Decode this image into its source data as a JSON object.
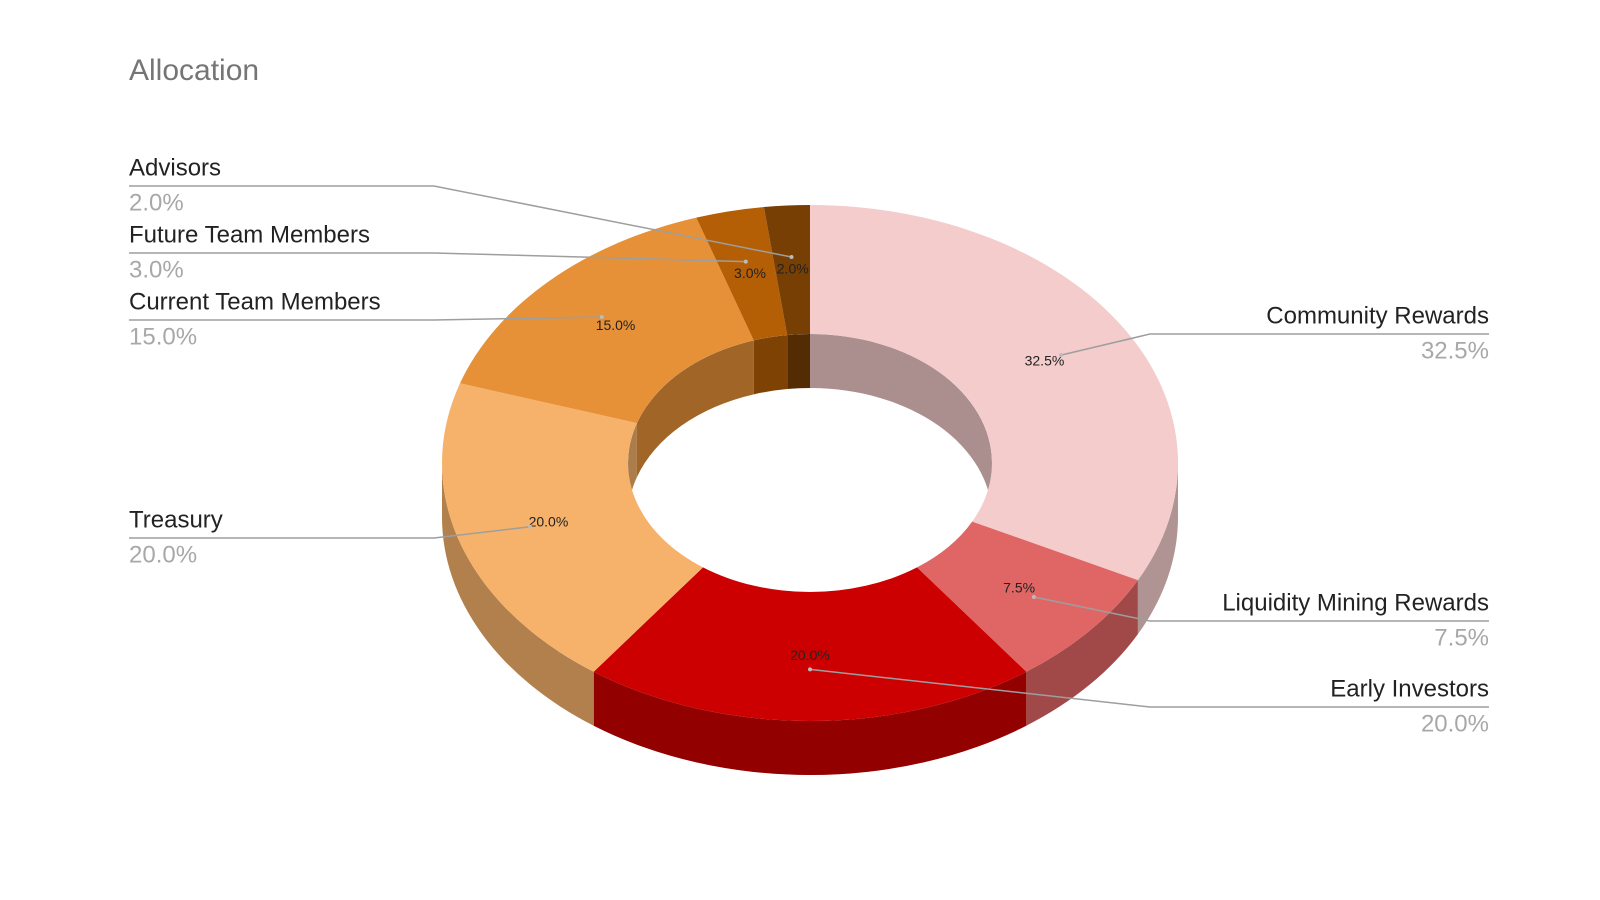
{
  "chart_data": {
    "type": "donut3d",
    "title": "Allocation",
    "categories": [
      "Community Rewards",
      "Liquidity Mining Rewards",
      "Early Investors",
      "Treasury",
      "Current Team Members",
      "Future Team Members",
      "Advisors"
    ],
    "values": [
      32.5,
      7.5,
      20,
      20,
      15,
      3,
      2
    ],
    "value_labels": [
      "32.5%",
      "7.5%",
      "20.0%",
      "20.0%",
      "15.0%",
      "3.0%",
      "2.0%"
    ],
    "colors": [
      "#f4cccc",
      "#e06666",
      "#cc0000",
      "#f6b26b",
      "#e69138",
      "#b45f06",
      "#783f04"
    ]
  }
}
